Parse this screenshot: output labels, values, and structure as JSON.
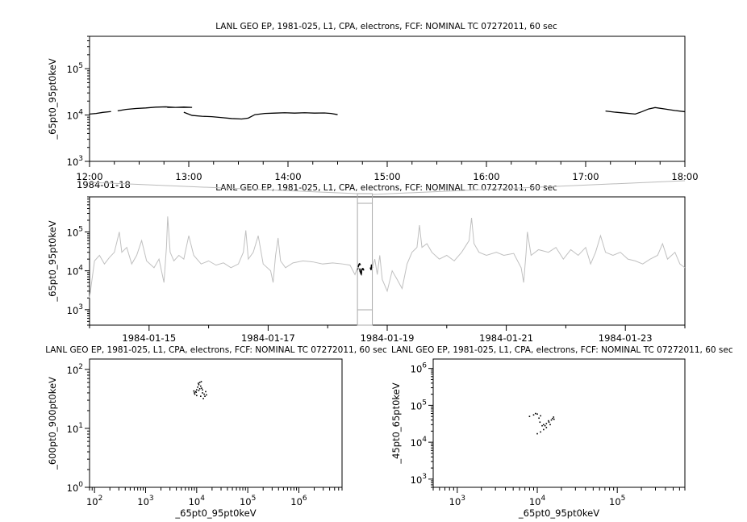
{
  "chart_data": [
    {
      "type": "line",
      "title": "LANL GEO EP, 1981-025, L1, CPA, electrons, FCF: NOMINAL TC 07272011, 60 sec",
      "ylabel": "_65pt0_95pt0keV",
      "xlabel": "",
      "xlim": [
        "1984-01-18T12:00",
        "1984-01-18T18:00"
      ],
      "ylim": [
        1000,
        500000
      ],
      "yscale": "log",
      "x_tick_labels": [
        "12:00",
        "13:00",
        "14:00",
        "15:00",
        "16:00",
        "17:00",
        "18:00"
      ],
      "x_date_label": "1984-01-18",
      "y_tick_labels": [
        "10^3",
        "10^4",
        "10^5"
      ],
      "color": "#000000",
      "segments": [
        [
          [
            "12:00",
            10500
          ],
          [
            "12:04",
            10800
          ],
          [
            "12:08",
            11400
          ],
          [
            "12:13",
            11900
          ]
        ],
        [
          [
            "12:17",
            12300
          ],
          [
            "12:22",
            13200
          ],
          [
            "12:28",
            13800
          ],
          [
            "12:34",
            14200
          ],
          [
            "12:40",
            14800
          ],
          [
            "12:46",
            15000
          ],
          [
            "12:52",
            14600
          ],
          [
            "12:57",
            14900
          ],
          [
            "13:02",
            14600
          ],
          [
            "12:47",
            14600
          ]
        ],
        [
          [
            "12:57",
            11500
          ],
          [
            "13:02",
            9800
          ],
          [
            "13:08",
            9400
          ],
          [
            "13:14",
            9200
          ],
          [
            "13:20",
            8800
          ],
          [
            "13:26",
            8400
          ],
          [
            "13:32",
            8200
          ],
          [
            "13:36",
            8600
          ],
          [
            "13:40",
            10200
          ],
          [
            "13:46",
            10800
          ],
          [
            "13:52",
            11000
          ],
          [
            "13:58",
            11200
          ],
          [
            "14:04",
            11000
          ],
          [
            "14:10",
            11200
          ],
          [
            "14:16",
            11000
          ],
          [
            "14:22",
            11100
          ],
          [
            "14:26",
            10800
          ],
          [
            "14:30",
            10200
          ]
        ],
        [
          [
            "17:12",
            12200
          ],
          [
            "17:18",
            11500
          ],
          [
            "17:24",
            11000
          ],
          [
            "17:30",
            10500
          ],
          [
            "17:34",
            11800
          ],
          [
            "17:38",
            13500
          ],
          [
            "17:42",
            14500
          ],
          [
            "17:48",
            13500
          ],
          [
            "17:54",
            12500
          ],
          [
            "18:00",
            11800
          ]
        ]
      ]
    },
    {
      "type": "line",
      "title": "LANL GEO EP, 1981-025, L1, CPA, electrons, FCF: NOMINAL TC 07272011, 60 sec",
      "ylabel": "_65pt0_95pt0keV",
      "xlim": [
        "1984-01-14T00:00",
        "1984-01-24T00:00"
      ],
      "ylim": [
        400,
        800000
      ],
      "yscale": "log",
      "x_tick_labels": [
        "1984-01-15",
        "1984-01-17",
        "1984-01-19",
        "1984-01-21",
        "1984-01-23"
      ],
      "y_tick_labels": [
        "10^3",
        "10^4",
        "10^5"
      ],
      "color": "#c0c0c0",
      "highlight_range": [
        "1984-01-18T12:00",
        "1984-01-18T18:00"
      ],
      "points": [
        [
          "1984-01-14T00:00",
          2000
        ],
        [
          "1984-01-14T02:00",
          18000
        ],
        [
          "1984-01-14T04:00",
          25000
        ],
        [
          "1984-01-14T06:00",
          15000
        ],
        [
          "1984-01-14T08:00",
          22000
        ],
        [
          "1984-01-14T10:00",
          30000
        ],
        [
          "1984-01-14T12:00",
          100000
        ],
        [
          "1984-01-14T13:00",
          30000
        ],
        [
          "1984-01-14T15:00",
          40000
        ],
        [
          "1984-01-14T17:00",
          15000
        ],
        [
          "1984-01-14T19:00",
          25000
        ],
        [
          "1984-01-14T21:00",
          60000
        ],
        [
          "1984-01-14T23:00",
          18000
        ],
        [
          "1984-01-15T02:00",
          12000
        ],
        [
          "1984-01-15T04:00",
          20000
        ],
        [
          "1984-01-15T06:00",
          5000
        ],
        [
          "1984-01-15T07:00",
          40000
        ],
        [
          "1984-01-15T07:30",
          250000
        ],
        [
          "1984-01-15T08:30",
          30000
        ],
        [
          "1984-01-15T10:00",
          18000
        ],
        [
          "1984-01-15T12:00",
          25000
        ],
        [
          "1984-01-15T14:00",
          20000
        ],
        [
          "1984-01-15T16:00",
          80000
        ],
        [
          "1984-01-15T18:00",
          25000
        ],
        [
          "1984-01-15T21:00",
          15000
        ],
        [
          "1984-01-16T00:00",
          18000
        ],
        [
          "1984-01-16T03:00",
          14000
        ],
        [
          "1984-01-16T06:00",
          16000
        ],
        [
          "1984-01-16T09:00",
          12000
        ],
        [
          "1984-01-16T12:00",
          15000
        ],
        [
          "1984-01-16T14:00",
          30000
        ],
        [
          "1984-01-16T15:00",
          110000
        ],
        [
          "1984-01-16T16:00",
          20000
        ],
        [
          "1984-01-16T18:00",
          30000
        ],
        [
          "1984-01-16T20:00",
          80000
        ],
        [
          "1984-01-16T22:00",
          15000
        ],
        [
          "1984-01-17T01:00",
          10000
        ],
        [
          "1984-01-17T02:00",
          5000
        ],
        [
          "1984-01-17T03:00",
          25000
        ],
        [
          "1984-01-17T04:00",
          70000
        ],
        [
          "1984-01-17T05:00",
          18000
        ],
        [
          "1984-01-17T07:00",
          12000
        ],
        [
          "1984-01-17T10:00",
          16000
        ],
        [
          "1984-01-17T14:00",
          18000
        ],
        [
          "1984-01-17T18:00",
          17000
        ],
        [
          "1984-01-17T22:00",
          15000
        ],
        [
          "1984-01-18T02:00",
          16000
        ],
        [
          "1984-01-18T06:00",
          15000
        ],
        [
          "1984-01-18T09:00",
          14000
        ],
        [
          "1984-01-18T11:00",
          8000
        ],
        [
          "1984-01-18T12:00",
          12000
        ],
        [
          null,
          null
        ],
        [
          "1984-01-18T18:00",
          12000
        ],
        [
          "1984-01-18T19:00",
          20000
        ],
        [
          "1984-01-18T20:00",
          8000
        ],
        [
          "1984-01-18T21:00",
          25000
        ],
        [
          "1984-01-18T22:00",
          6000
        ],
        [
          "1984-01-19T00:00",
          3000
        ],
        [
          "1984-01-19T02:00",
          10000
        ],
        [
          "1984-01-19T04:00",
          6000
        ],
        [
          "1984-01-19T06:00",
          3500
        ],
        [
          "1984-01-19T08:00",
          15000
        ],
        [
          "1984-01-19T10:00",
          30000
        ],
        [
          "1984-01-19T12:00",
          40000
        ],
        [
          "1984-01-19T13:00",
          150000
        ],
        [
          "1984-01-19T14:00",
          40000
        ],
        [
          "1984-01-19T16:00",
          50000
        ],
        [
          "1984-01-19T18:00",
          30000
        ],
        [
          "1984-01-19T21:00",
          20000
        ],
        [
          "1984-01-20T00:00",
          25000
        ],
        [
          "1984-01-20T03:00",
          18000
        ],
        [
          "1984-01-20T06:00",
          30000
        ],
        [
          "1984-01-20T09:00",
          60000
        ],
        [
          "1984-01-20T10:00",
          230000
        ],
        [
          "1984-01-20T11:00",
          50000
        ],
        [
          "1984-01-20T13:00",
          30000
        ],
        [
          "1984-01-20T16:00",
          25000
        ],
        [
          "1984-01-20T20:00",
          30000
        ],
        [
          "1984-01-20T23:00",
          25000
        ],
        [
          "1984-01-21T03:00",
          28000
        ],
        [
          "1984-01-21T06:00",
          12000
        ],
        [
          "1984-01-21T07:00",
          5000
        ],
        [
          "1984-01-21T08:00",
          30000
        ],
        [
          "1984-01-21T08:30",
          100000
        ],
        [
          "1984-01-21T10:00",
          25000
        ],
        [
          "1984-01-21T13:00",
          35000
        ],
        [
          "1984-01-21T17:00",
          30000
        ],
        [
          "1984-01-21T20:00",
          40000
        ],
        [
          "1984-01-21T23:00",
          20000
        ],
        [
          "1984-01-22T02:00",
          35000
        ],
        [
          "1984-01-22T05:00",
          25000
        ],
        [
          "1984-01-22T08:00",
          40000
        ],
        [
          "1984-01-22T10:00",
          15000
        ],
        [
          "1984-01-22T12:00",
          30000
        ],
        [
          "1984-01-22T14:00",
          80000
        ],
        [
          "1984-01-22T16:00",
          30000
        ],
        [
          "1984-01-22T19:00",
          25000
        ],
        [
          "1984-01-22T22:00",
          30000
        ],
        [
          "1984-01-23T01:00",
          20000
        ],
        [
          "1984-01-23T04:00",
          18000
        ],
        [
          "1984-01-23T07:00",
          15000
        ],
        [
          "1984-01-23T10:00",
          20000
        ],
        [
          "1984-01-23T13:00",
          25000
        ],
        [
          "1984-01-23T15:00",
          50000
        ],
        [
          "1984-01-23T17:00",
          20000
        ],
        [
          "1984-01-23T20:00",
          30000
        ],
        [
          "1984-01-23T22:00",
          15000
        ],
        [
          "1984-01-24T00:00",
          12000
        ]
      ]
    },
    {
      "type": "scatter",
      "title": "LANL GEO EP, 1981-025, L1, CPA, electrons, FCF: NOMINAL TC 07272011, 60 sec",
      "xlabel": "_65pt0_95pt0keV",
      "ylabel": "_600pt0_900pt0keV",
      "xscale": "log",
      "yscale": "log",
      "xlim": [
        80,
        7000000
      ],
      "ylim": [
        1,
        150
      ],
      "x_tick_labels": [
        "10^2",
        "10^3",
        "10^4",
        "10^5",
        "10^6"
      ],
      "y_tick_labels": [
        "10^0",
        "10^1",
        "10^2"
      ],
      "color": "#000000",
      "points": [
        [
          9000,
          40
        ],
        [
          9500,
          42
        ],
        [
          10000,
          45
        ],
        [
          10500,
          50
        ],
        [
          11000,
          55
        ],
        [
          11500,
          60
        ],
        [
          12000,
          52
        ],
        [
          12500,
          48
        ],
        [
          13000,
          40
        ],
        [
          14000,
          38
        ],
        [
          15000,
          42
        ],
        [
          10000,
          36
        ],
        [
          9200,
          38
        ],
        [
          11000,
          44
        ],
        [
          12000,
          35
        ],
        [
          13500,
          32
        ],
        [
          11500,
          47
        ],
        [
          10800,
          58
        ],
        [
          9800,
          41
        ],
        [
          14500,
          35
        ],
        [
          8800,
          43
        ],
        [
          12300,
          62
        ],
        [
          13000,
          45
        ],
        [
          15500,
          37
        ]
      ]
    },
    {
      "type": "scatter",
      "title": "LANL GEO EP, 1981-025, L1, CPA, electrons, FCF: NOMINAL TC 07272011, 60 sec",
      "xlabel": "_65pt0_95pt0keV",
      "ylabel": "_45pt0_65pt0keV",
      "xscale": "log",
      "yscale": "log",
      "xlim": [
        500,
        700000
      ],
      "ylim": [
        600,
        1800000
      ],
      "x_tick_labels": [
        "10^3",
        "10^4",
        "10^5"
      ],
      "y_tick_labels": [
        "10^3",
        "10^4",
        "10^5",
        "10^6"
      ],
      "color": "#000000",
      "points": [
        [
          8000,
          50000
        ],
        [
          9000,
          55000
        ],
        [
          10000,
          58000
        ],
        [
          11000,
          52000
        ],
        [
          10500,
          45000
        ],
        [
          12000,
          30000
        ],
        [
          13000,
          32000
        ],
        [
          14000,
          35000
        ],
        [
          15000,
          40000
        ],
        [
          16000,
          48000
        ],
        [
          15500,
          44000
        ],
        [
          14500,
          30000
        ],
        [
          13000,
          25000
        ],
        [
          12000,
          22000
        ],
        [
          11000,
          19000
        ],
        [
          10000,
          17000
        ],
        [
          11500,
          28000
        ],
        [
          12500,
          28000
        ],
        [
          9500,
          60000
        ],
        [
          10800,
          35000
        ],
        [
          13800,
          38000
        ],
        [
          16200,
          42000
        ]
      ]
    }
  ]
}
